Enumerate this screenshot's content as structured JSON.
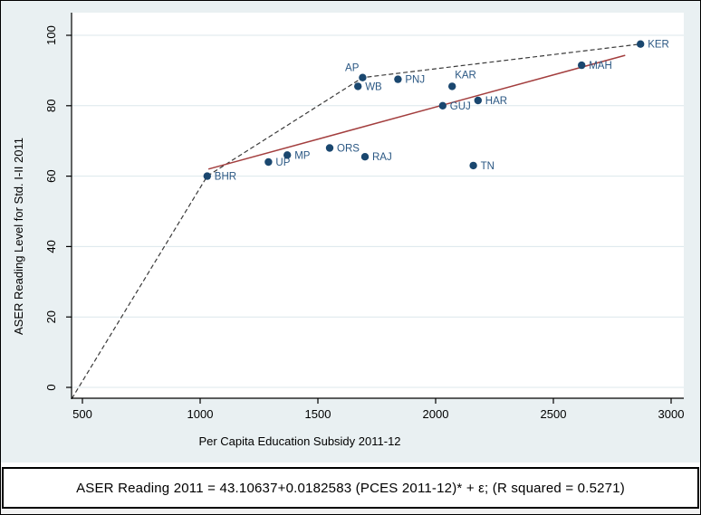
{
  "colors": {
    "background": "#e9f0f2",
    "plot_bg": "#ffffff",
    "grid": "#dce7eb",
    "axis": "#000000",
    "tick_label": "#000000",
    "marker": "#1a476f",
    "marker_label": "#2a5783",
    "regression_line": "#a33e3e",
    "frontier_line": "#3a3a3a"
  },
  "chart_data": {
    "type": "scatter",
    "title": "",
    "xlabel": "Per Capita Education Subsidy 2011-12",
    "ylabel": "ASER Reading Level for Std. I-II 2011",
    "x_ticks": [
      500,
      1000,
      1500,
      2000,
      2500,
      3000
    ],
    "y_ticks": [
      0,
      20,
      40,
      60,
      80,
      100
    ],
    "xlim": [
      455,
      3055
    ],
    "ylim": [
      -3.2,
      106
    ],
    "grid": "horizontal",
    "legend": "none",
    "points": [
      {
        "label": "BHR",
        "x": 1030,
        "y": 60,
        "label_pos": "right"
      },
      {
        "label": "UP",
        "x": 1290,
        "y": 64,
        "label_pos": "right"
      },
      {
        "label": "MP",
        "x": 1370,
        "y": 66,
        "label_pos": "right"
      },
      {
        "label": "ORS",
        "x": 1550,
        "y": 68,
        "label_pos": "right"
      },
      {
        "label": "RAJ",
        "x": 1700,
        "y": 65.5,
        "label_pos": "right"
      },
      {
        "label": "WB",
        "x": 1670,
        "y": 85.5,
        "label_pos": "right"
      },
      {
        "label": "AP",
        "x": 1690,
        "y": 88,
        "label_pos": "above-left"
      },
      {
        "label": "PNJ",
        "x": 1840,
        "y": 87.5,
        "label_pos": "right"
      },
      {
        "label": "GUJ",
        "x": 2030,
        "y": 80,
        "label_pos": "right"
      },
      {
        "label": "KAR",
        "x": 2070,
        "y": 85.5,
        "label_pos": "above"
      },
      {
        "label": "HAR",
        "x": 2180,
        "y": 81.5,
        "label_pos": "right"
      },
      {
        "label": "TN",
        "x": 2160,
        "y": 63,
        "label_pos": "right"
      },
      {
        "label": "MAH",
        "x": 2620,
        "y": 91.5,
        "label_pos": "right"
      },
      {
        "label": "KER",
        "x": 2870,
        "y": 97.5,
        "label_pos": "right"
      }
    ],
    "regression": {
      "intercept": 43.10637,
      "slope": 0.0182583,
      "r_squared": 0.5271,
      "x_range": [
        1035,
        2805
      ],
      "style": "solid"
    },
    "frontier": {
      "style": "dashed",
      "points": [
        [
          455,
          -3.2
        ],
        [
          1030,
          60
        ],
        [
          1690,
          88
        ],
        [
          2870,
          97.5
        ]
      ]
    }
  },
  "caption": {
    "text": "ASER Reading 2011 = 43.10637+0.0182583 (PCES 2011-12)* + ε; (R squared = 0.5271)"
  }
}
